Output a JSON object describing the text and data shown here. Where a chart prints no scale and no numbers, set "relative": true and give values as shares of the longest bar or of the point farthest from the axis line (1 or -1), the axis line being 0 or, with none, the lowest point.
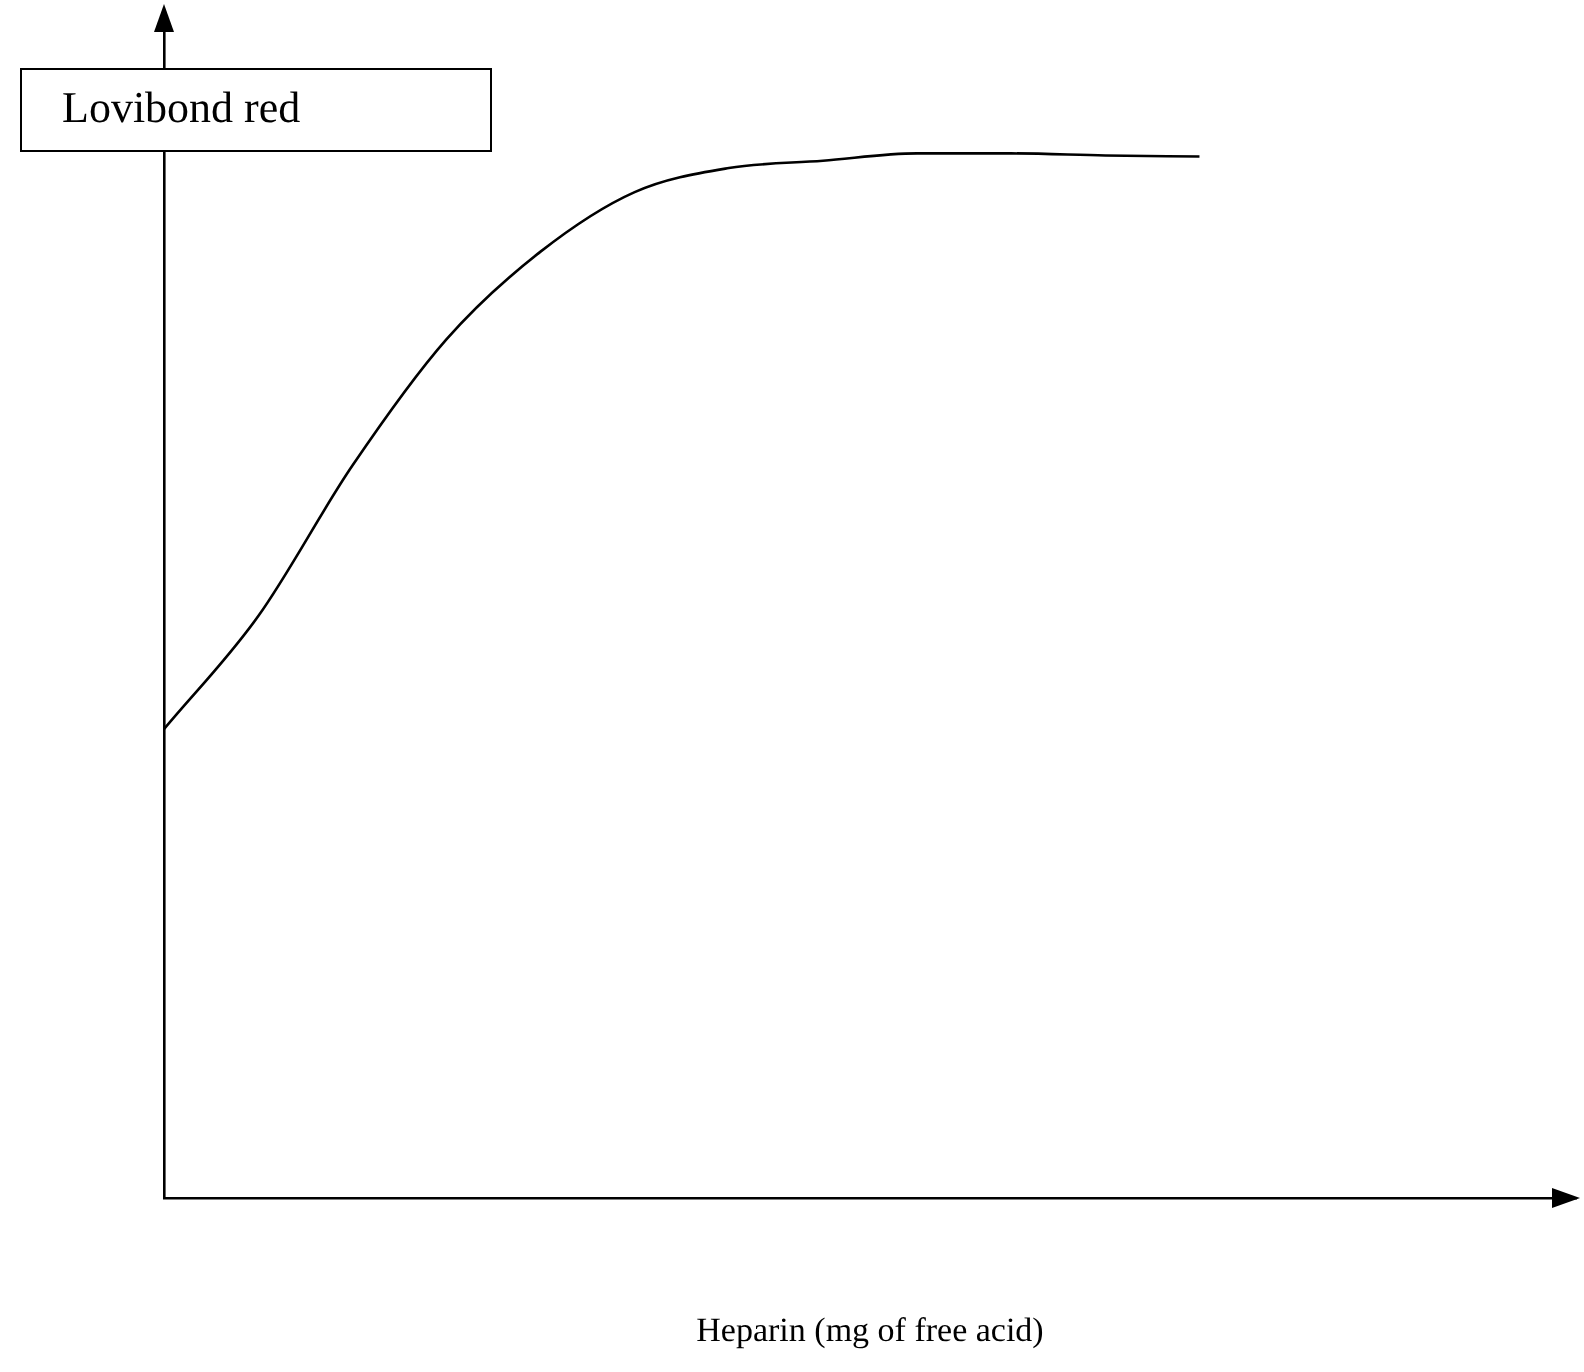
{
  "chart_data": {
    "type": "line",
    "relative": true,
    "xlabel": "Heparin (mg of free acid)",
    "ylabel": "Lovibond red",
    "categories": [
      null,
      null,
      null,
      null,
      null,
      null,
      null,
      null,
      null,
      null,
      null,
      null,
      null,
      null,
      null,
      null
    ],
    "series": [
      {
        "color": "#000000",
        "values": [
          0.449,
          0.557,
          0.701,
          0.822,
          0.906,
          0.963,
          0.986,
          0.993,
          1,
          1,
          0.998,
          0.997,
          null,
          null,
          null,
          null
        ]
      }
    ],
    "marker": "none",
    "line_style": "solid",
    "grid": false,
    "legend": false
  }
}
